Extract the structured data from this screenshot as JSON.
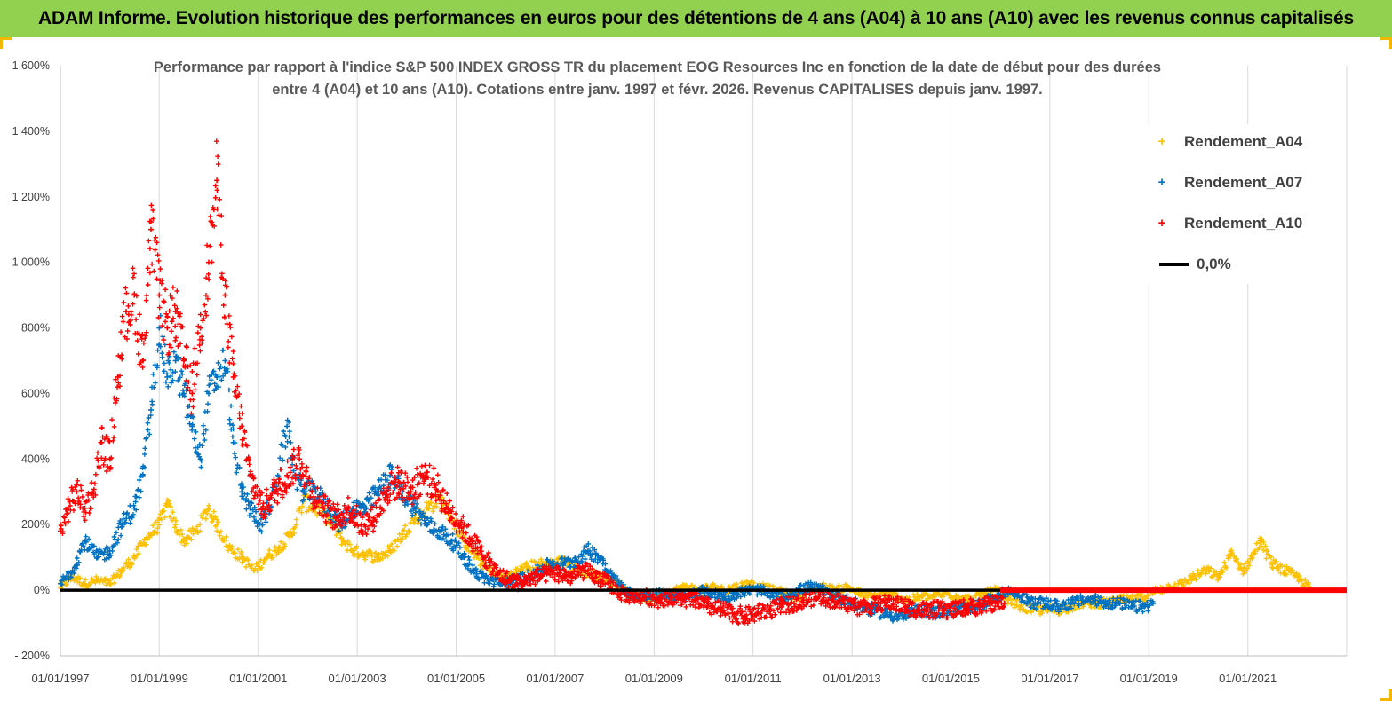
{
  "banner": {
    "title": "ADAM Informe. Evolution historique des performances en euros pour des détentions de 4 ans (A04) à 10 ans (A10) avec les revenus connus capitalisés"
  },
  "colors": {
    "banner": "#92d050",
    "A04": "#ffc000",
    "A07": "#0070c0",
    "A10": "#ff0000",
    "zero_line": "#000000",
    "grid": "#d9d9d9"
  },
  "chart_data": {
    "type": "scatter",
    "title_line1": "Performance par rapport à l'indice S&P 500 INDEX GROSS TR  du placement EOG Resources Inc en fonction de la date de début pour des durées",
    "title_line2": "entre 4 (A04) et 10 ans (A10).  Cotations entre janv. 1997 et févr. 2026. Revenus  CAPITALISES depuis janv. 1997.",
    "xlabel": "",
    "ylabel": "",
    "x_range": [
      "1997-01-01",
      "2023-01-01"
    ],
    "ylim": [
      -200,
      1600
    ],
    "y_ticks": [
      -200,
      0,
      200,
      400,
      600,
      800,
      1000,
      1200,
      1400,
      1600
    ],
    "y_tick_labels": [
      "- 200%",
      "0%",
      "200%",
      "400%",
      "600%",
      "800%",
      "1 000%",
      "1 200%",
      "1 400%",
      "1 600%"
    ],
    "x_ticks": [
      "1997-01-01",
      "1999-01-01",
      "2001-01-01",
      "2003-01-01",
      "2005-01-01",
      "2007-01-01",
      "2009-01-01",
      "2011-01-01",
      "2013-01-01",
      "2015-01-01",
      "2017-01-01",
      "2019-01-01",
      "2021-01-01"
    ],
    "x_tick_labels": [
      "01/01/1997",
      "01/01/1999",
      "01/01/2001",
      "01/01/2003",
      "01/01/2005",
      "01/01/2007",
      "01/01/2009",
      "01/01/2011",
      "01/01/2013",
      "01/01/2015",
      "01/01/2017",
      "01/01/2019",
      "01/01/2021"
    ],
    "grid": "vertical",
    "legend_position": "top-right",
    "series": [
      {
        "name": "Rendement_A04",
        "marker": "+",
        "x": [
          "1997-01-01",
          "1997-04-01",
          "1997-07-01",
          "1997-10-01",
          "1998-01-01",
          "1998-04-01",
          "1998-07-01",
          "1998-10-01",
          "1999-01-01",
          "1999-03-01",
          "1999-05-01",
          "1999-07-01",
          "1999-10-01",
          "2000-01-01",
          "2000-03-01",
          "2000-06-01",
          "2000-09-01",
          "2000-12-01",
          "2001-03-01",
          "2001-06-01",
          "2001-09-01",
          "2001-12-01",
          "2002-03-01",
          "2002-06-01",
          "2002-09-01",
          "2002-12-01",
          "2003-03-01",
          "2003-06-01",
          "2003-09-01",
          "2003-12-01",
          "2004-03-01",
          "2004-06-01",
          "2004-09-01",
          "2004-12-01",
          "2005-03-01",
          "2005-06-01",
          "2005-09-01",
          "2005-12-01",
          "2006-03-01",
          "2006-06-01",
          "2006-09-01",
          "2006-12-01",
          "2007-03-01",
          "2007-06-01",
          "2007-09-01",
          "2007-12-01",
          "2008-03-01",
          "2008-06-01",
          "2008-09-01",
          "2008-12-01",
          "2009-03-01",
          "2009-06-01",
          "2009-09-01",
          "2009-12-01",
          "2010-03-01",
          "2010-06-01",
          "2010-09-01",
          "2010-12-01",
          "2011-03-01",
          "2011-06-01",
          "2011-09-01",
          "2011-12-01",
          "2012-03-01",
          "2012-06-01",
          "2012-09-01",
          "2012-12-01",
          "2013-03-01",
          "2013-06-01",
          "2013-09-01",
          "2013-12-01",
          "2014-03-01",
          "2014-06-01",
          "2014-09-01",
          "2014-12-01",
          "2015-03-01",
          "2015-06-01",
          "2015-09-01",
          "2015-12-01",
          "2016-03-01",
          "2016-06-01",
          "2016-09-01",
          "2016-12-01",
          "2017-03-01",
          "2017-06-01",
          "2017-09-01",
          "2017-12-01",
          "2018-03-01",
          "2018-06-01",
          "2018-09-01",
          "2018-12-01",
          "2019-03-01",
          "2019-06-01",
          "2019-09-01",
          "2019-12-01",
          "2020-03-01",
          "2020-06-01",
          "2020-09-01",
          "2020-12-01",
          "2021-02-01",
          "2021-04-01",
          "2021-07-01",
          "2021-10-01",
          "2022-01-01",
          "2022-04-01"
        ],
        "y": [
          10,
          40,
          20,
          30,
          20,
          60,
          100,
          160,
          200,
          260,
          200,
          150,
          180,
          250,
          200,
          130,
          100,
          60,
          100,
          130,
          170,
          270,
          250,
          220,
          160,
          120,
          110,
          100,
          120,
          170,
          220,
          250,
          280,
          220,
          150,
          100,
          60,
          40,
          50,
          70,
          80,
          80,
          90,
          70,
          50,
          40,
          30,
          0,
          -20,
          -30,
          -10,
          0,
          10,
          0,
          10,
          0,
          10,
          20,
          10,
          0,
          -10,
          -20,
          0,
          10,
          0,
          10,
          -10,
          -20,
          -10,
          -20,
          -30,
          -20,
          -20,
          -10,
          -20,
          -30,
          -10,
          0,
          -30,
          -50,
          -60,
          -60,
          -60,
          -50,
          -40,
          -40,
          -40,
          -30,
          -30,
          -20,
          0,
          10,
          20,
          40,
          60,
          40,
          110,
          60,
          100,
          150,
          80,
          60,
          40,
          10
        ],
        "y_spread": 20
      },
      {
        "name": "Rendement_A07",
        "marker": "+",
        "x": [
          "1997-01-01",
          "1997-04-01",
          "1997-07-01",
          "1997-10-01",
          "1998-01-01",
          "1998-04-01",
          "1998-07-01",
          "1998-09-01",
          "1998-11-01",
          "1999-01-01",
          "1999-03-01",
          "1999-05-01",
          "1999-07-01",
          "1999-09-01",
          "1999-11-01",
          "2000-01-01",
          "2000-03-01",
          "2000-05-01",
          "2000-07-01",
          "2000-09-01",
          "2000-11-01",
          "2001-02-01",
          "2001-05-01",
          "2001-08-01",
          "2001-10-01",
          "2001-12-01",
          "2002-03-01",
          "2002-06-01",
          "2002-09-01",
          "2002-12-01",
          "2003-03-01",
          "2003-06-01",
          "2003-09-01",
          "2003-12-01",
          "2004-03-01",
          "2004-06-01",
          "2004-09-01",
          "2004-12-01",
          "2005-03-01",
          "2005-06-01",
          "2005-09-01",
          "2005-12-01",
          "2006-03-01",
          "2006-06-01",
          "2006-09-01",
          "2006-12-01",
          "2007-03-01",
          "2007-06-01",
          "2007-09-01",
          "2007-12-01",
          "2008-03-01",
          "2008-06-01",
          "2008-09-01",
          "2008-12-01",
          "2009-03-01",
          "2009-06-01",
          "2009-09-01",
          "2009-12-01",
          "2010-03-01",
          "2010-06-01",
          "2010-09-01",
          "2010-12-01",
          "2011-03-01",
          "2011-06-01",
          "2011-09-01",
          "2011-12-01",
          "2012-03-01",
          "2012-06-01",
          "2012-09-01",
          "2012-12-01",
          "2013-03-01",
          "2013-06-01",
          "2013-09-01",
          "2013-12-01",
          "2014-03-01",
          "2014-06-01",
          "2014-09-01",
          "2014-12-01",
          "2015-03-01",
          "2015-06-01",
          "2015-09-01",
          "2015-12-01",
          "2016-03-01",
          "2016-06-01",
          "2016-09-01",
          "2016-12-01",
          "2017-03-01",
          "2017-06-01",
          "2017-09-01",
          "2017-12-01",
          "2018-03-01",
          "2018-06-01",
          "2018-09-01",
          "2018-12-01",
          "2019-02-01"
        ],
        "y": [
          20,
          60,
          150,
          100,
          120,
          200,
          250,
          350,
          550,
          800,
          650,
          700,
          600,
          500,
          400,
          600,
          650,
          700,
          450,
          300,
          250,
          200,
          300,
          500,
          350,
          300,
          300,
          250,
          200,
          250,
          250,
          300,
          350,
          300,
          250,
          200,
          180,
          150,
          100,
          50,
          30,
          20,
          30,
          40,
          60,
          80,
          80,
          90,
          120,
          100,
          40,
          0,
          -20,
          -20,
          -10,
          -20,
          -20,
          0,
          -10,
          -20,
          -10,
          0,
          0,
          -20,
          -20,
          0,
          10,
          0,
          -20,
          -30,
          -50,
          -60,
          -70,
          -80,
          -70,
          -60,
          -70,
          -60,
          -60,
          -50,
          -40,
          -20,
          0,
          -20,
          -40,
          -40,
          -50,
          -40,
          -30,
          -30,
          -40,
          -40,
          -50,
          -50,
          -40
        ],
        "y_spread": 25
      },
      {
        "name": "Rendement_A10",
        "marker": "+",
        "x": [
          "1997-01-01",
          "1997-03-01",
          "1997-05-01",
          "1997-07-01",
          "1997-09-01",
          "1997-11-01",
          "1998-01-01",
          "1998-03-01",
          "1998-05-01",
          "1998-07-01",
          "1998-09-01",
          "1998-11-01",
          "1999-01-01",
          "1999-03-01",
          "1999-05-01",
          "1999-07-01",
          "1999-09-01",
          "1999-11-01",
          "2000-01-01",
          "2000-03-01",
          "2000-05-01",
          "2000-07-01",
          "2000-09-01",
          "2000-11-01",
          "2001-02-01",
          "2001-05-01",
          "2001-08-01",
          "2001-11-01",
          "2002-02-01",
          "2002-05-01",
          "2002-08-01",
          "2002-11-01",
          "2003-02-01",
          "2003-05-01",
          "2003-08-01",
          "2003-11-01",
          "2004-02-01",
          "2004-05-01",
          "2004-08-01",
          "2004-11-01",
          "2005-02-01",
          "2005-05-01",
          "2005-08-01",
          "2005-11-01",
          "2006-02-01",
          "2006-05-01",
          "2006-08-01",
          "2006-11-01",
          "2007-02-01",
          "2007-05-01",
          "2007-08-01",
          "2007-11-01",
          "2008-02-01",
          "2008-05-01",
          "2008-08-01",
          "2008-11-01",
          "2009-02-01",
          "2009-05-01",
          "2009-08-01",
          "2009-11-01",
          "2010-02-01",
          "2010-05-01",
          "2010-08-01",
          "2010-11-01",
          "2011-02-01",
          "2011-05-01",
          "2011-08-01",
          "2011-11-01",
          "2012-02-01",
          "2012-05-01",
          "2012-08-01",
          "2012-11-01",
          "2013-02-01",
          "2013-05-01",
          "2013-08-01",
          "2013-11-01",
          "2014-02-01",
          "2014-05-01",
          "2014-08-01",
          "2014-11-01",
          "2015-02-01",
          "2015-05-01",
          "2015-08-01",
          "2015-11-01",
          "2016-02-01"
        ],
        "y": [
          180,
          250,
          300,
          250,
          300,
          450,
          400,
          650,
          850,
          900,
          700,
          1100,
          900,
          800,
          850,
          700,
          600,
          800,
          1000,
          1250,
          900,
          650,
          500,
          350,
          250,
          300,
          350,
          400,
          300,
          250,
          220,
          250,
          200,
          220,
          300,
          330,
          300,
          350,
          320,
          250,
          200,
          150,
          100,
          50,
          30,
          20,
          40,
          50,
          50,
          40,
          60,
          40,
          20,
          -10,
          -20,
          -20,
          -30,
          -20,
          -30,
          -30,
          -50,
          -60,
          -70,
          -80,
          -70,
          -60,
          -50,
          -40,
          -30,
          -20,
          -30,
          -40,
          -50,
          -50,
          -40,
          -40,
          -50,
          -60,
          -60,
          -60,
          -60,
          -50,
          -50,
          -40,
          -40
        ],
        "y_spread": 35
      },
      {
        "name": "0,0%",
        "marker": "line",
        "x": [
          "1997-01-01",
          "2023-01-01"
        ],
        "y": [
          0,
          0
        ]
      }
    ],
    "zero_band": {
      "series": "Rendement_A10",
      "x": [
        "2016-01-01",
        "2023-01-01"
      ],
      "y": 0
    }
  }
}
